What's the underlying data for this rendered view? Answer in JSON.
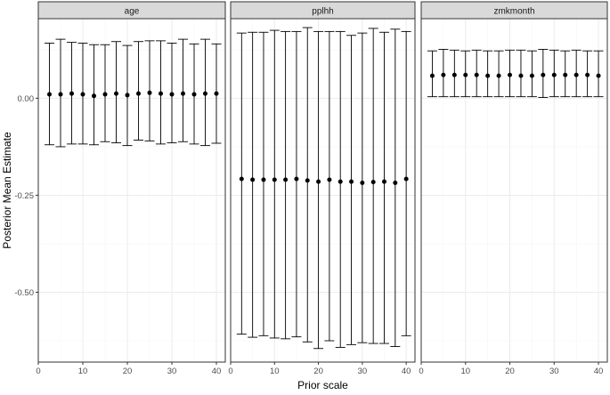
{
  "chart_data": {
    "type": "errorbar",
    "xlabel": "Prior scale",
    "ylabel": "Posterior Mean Estimate",
    "xlim": [
      0,
      42
    ],
    "ylim": [
      -0.68,
      0.205
    ],
    "x_ticks": [
      0,
      10,
      20,
      30,
      40
    ],
    "y_ticks": [
      0.0,
      -0.25,
      -0.5
    ],
    "y_tick_labels": [
      "0.00",
      "-0.25",
      "-0.50"
    ],
    "grid": true,
    "x": [
      2.5,
      5,
      7.5,
      10,
      12.5,
      15,
      17.5,
      20,
      22.5,
      25,
      27.5,
      30,
      32.5,
      35,
      37.5,
      40
    ],
    "panels": [
      {
        "name": "age",
        "mean": [
          0.01,
          0.01,
          0.012,
          0.01,
          0.006,
          0.01,
          0.012,
          0.008,
          0.012,
          0.014,
          0.012,
          0.01,
          0.012,
          0.01,
          0.012,
          0.012
        ],
        "lower": [
          -0.12,
          -0.125,
          -0.118,
          -0.118,
          -0.12,
          -0.112,
          -0.115,
          -0.122,
          -0.108,
          -0.11,
          -0.118,
          -0.115,
          -0.112,
          -0.118,
          -0.122,
          -0.116
        ],
        "upper": [
          0.142,
          0.152,
          0.144,
          0.142,
          0.138,
          0.138,
          0.146,
          0.136,
          0.146,
          0.148,
          0.148,
          0.142,
          0.152,
          0.14,
          0.152,
          0.14
        ]
      },
      {
        "name": "pplhh",
        "mean": [
          -0.208,
          -0.21,
          -0.21,
          -0.21,
          -0.21,
          -0.208,
          -0.212,
          -0.215,
          -0.21,
          -0.215,
          -0.215,
          -0.218,
          -0.216,
          -0.215,
          -0.218,
          -0.208
        ],
        "lower": [
          -0.608,
          -0.616,
          -0.612,
          -0.618,
          -0.62,
          -0.615,
          -0.628,
          -0.645,
          -0.625,
          -0.642,
          -0.635,
          -0.63,
          -0.632,
          -0.632,
          -0.64,
          -0.612
        ],
        "upper": [
          0.168,
          0.17,
          0.17,
          0.175,
          0.172,
          0.172,
          0.182,
          0.172,
          0.172,
          0.172,
          0.162,
          0.168,
          0.18,
          0.17,
          0.178,
          0.172
        ]
      },
      {
        "name": "zmkmonth",
        "mean": [
          0.058,
          0.06,
          0.06,
          0.06,
          0.06,
          0.058,
          0.058,
          0.06,
          0.058,
          0.058,
          0.06,
          0.06,
          0.06,
          0.06,
          0.06,
          0.058
        ],
        "lower": [
          0.004,
          0.004,
          0.004,
          0.004,
          0.004,
          0.004,
          0.004,
          0.004,
          0.004,
          0.004,
          0.002,
          0.004,
          0.004,
          0.004,
          0.004,
          0.004
        ],
        "upper": [
          0.122,
          0.126,
          0.124,
          0.122,
          0.124,
          0.122,
          0.122,
          0.124,
          0.124,
          0.122,
          0.126,
          0.124,
          0.122,
          0.124,
          0.122,
          0.122
        ]
      }
    ],
    "colors": {
      "strip_fill": "#d9d9d9",
      "panel_border": "#333333",
      "grid_major": "#ebebeb",
      "grid_minor": "#f5f5f5",
      "mark": "#000000",
      "axis_text": "#4d4d4d"
    }
  }
}
